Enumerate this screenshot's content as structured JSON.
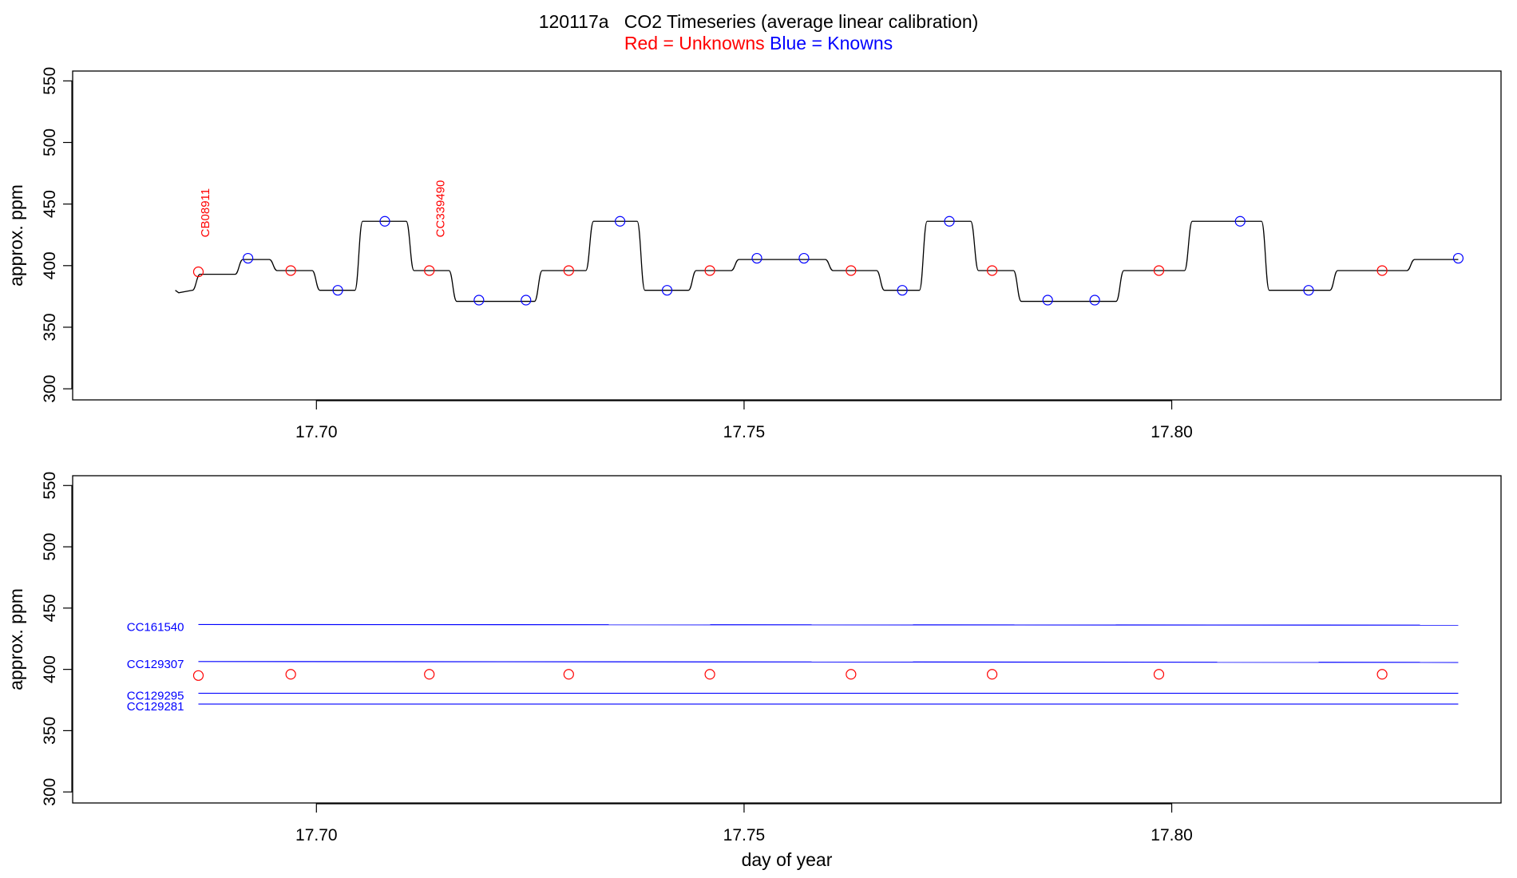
{
  "chart_data": {
    "title": "120117a   CO2 Timeseries (average linear calibration)",
    "subtitle": {
      "red": "Red = Unknowns",
      "blue": "Blue = Knowns"
    },
    "colors": {
      "unknowns": "#ff0000",
      "knowns": "#0000ff",
      "trace": "#000000",
      "axis": "#000000"
    },
    "panels": [
      {
        "type": "line",
        "ylabel": "approx. ppm",
        "xlabel": "",
        "xlim": [
          17.6715,
          17.8385
        ],
        "ylim": [
          291,
          558
        ],
        "yticks": [
          300,
          350,
          400,
          450,
          500,
          550
        ],
        "xticks": [
          17.7,
          17.75,
          17.8
        ],
        "xtick_labels": [
          "17.70",
          "17.75",
          "17.80"
        ],
        "trace_steps": [
          [
            17.6835,
            380
          ],
          [
            17.6855,
            393
          ],
          [
            17.6905,
            405
          ],
          [
            17.6945,
            396
          ],
          [
            17.6995,
            380
          ],
          [
            17.7045,
            436
          ],
          [
            17.7105,
            396
          ],
          [
            17.7155,
            371
          ],
          [
            17.7255,
            396
          ],
          [
            17.7315,
            436
          ],
          [
            17.7375,
            380
          ],
          [
            17.7435,
            396
          ],
          [
            17.7485,
            405
          ],
          [
            17.7595,
            396
          ],
          [
            17.7655,
            380
          ],
          [
            17.7705,
            436
          ],
          [
            17.7765,
            396
          ],
          [
            17.7815,
            371
          ],
          [
            17.7935,
            396
          ],
          [
            17.8015,
            436
          ],
          [
            17.8105,
            380
          ],
          [
            17.8185,
            396
          ],
          [
            17.8275,
            405
          ]
        ],
        "trace_end": 17.8335,
        "unknowns": [
          {
            "x": 17.6862,
            "y": 395
          },
          {
            "x": 17.697,
            "y": 396
          },
          {
            "x": 17.7132,
            "y": 396
          },
          {
            "x": 17.7295,
            "y": 396
          },
          {
            "x": 17.746,
            "y": 396
          },
          {
            "x": 17.7625,
            "y": 396
          },
          {
            "x": 17.779,
            "y": 396
          },
          {
            "x": 17.7985,
            "y": 396
          },
          {
            "x": 17.8246,
            "y": 396
          }
        ],
        "knowns": [
          {
            "x": 17.692,
            "y": 406
          },
          {
            "x": 17.7025,
            "y": 380
          },
          {
            "x": 17.708,
            "y": 436
          },
          {
            "x": 17.719,
            "y": 372
          },
          {
            "x": 17.7245,
            "y": 372
          },
          {
            "x": 17.7355,
            "y": 436
          },
          {
            "x": 17.741,
            "y": 380
          },
          {
            "x": 17.7515,
            "y": 406
          },
          {
            "x": 17.757,
            "y": 406
          },
          {
            "x": 17.7685,
            "y": 380
          },
          {
            "x": 17.774,
            "y": 436
          },
          {
            "x": 17.7855,
            "y": 372
          },
          {
            "x": 17.791,
            "y": 372
          },
          {
            "x": 17.808,
            "y": 436
          },
          {
            "x": 17.816,
            "y": 380
          },
          {
            "x": 17.8335,
            "y": 406
          }
        ],
        "annotations": [
          {
            "text": "CB08911",
            "x": 17.687,
            "y": 423
          },
          {
            "text": "CC339490",
            "x": 17.7145,
            "y": 423
          }
        ]
      },
      {
        "type": "scatter",
        "ylabel": "approx. ppm",
        "xlabel": "day of year",
        "xlim": [
          17.6715,
          17.8385
        ],
        "ylim": [
          291,
          558
        ],
        "yticks": [
          300,
          350,
          400,
          450,
          500,
          550
        ],
        "xticks": [
          17.7,
          17.75,
          17.8
        ],
        "xtick_labels": [
          "17.70",
          "17.75",
          "17.80"
        ],
        "reference_lines": [
          {
            "label": "CC161540",
            "x0": 17.6862,
            "x1": 17.8335,
            "y0": 436.6,
            "y1": 436.1
          },
          {
            "label": "CC129307",
            "x0": 17.6862,
            "x1": 17.8335,
            "y0": 406.4,
            "y1": 405.7
          },
          {
            "label": "CC129295",
            "x0": 17.6862,
            "x1": 17.8335,
            "y0": 380.5,
            "y1": 380.5
          },
          {
            "label": "CC129281",
            "x0": 17.6862,
            "x1": 17.8335,
            "y0": 371.7,
            "y1": 371.7
          }
        ],
        "unknowns": [
          {
            "x": 17.6862,
            "y": 395
          },
          {
            "x": 17.697,
            "y": 396
          },
          {
            "x": 17.7132,
            "y": 396
          },
          {
            "x": 17.7295,
            "y": 396
          },
          {
            "x": 17.746,
            "y": 396
          },
          {
            "x": 17.7625,
            "y": 396
          },
          {
            "x": 17.779,
            "y": 396
          },
          {
            "x": 17.7985,
            "y": 396
          },
          {
            "x": 17.8246,
            "y": 396
          }
        ]
      }
    ]
  }
}
